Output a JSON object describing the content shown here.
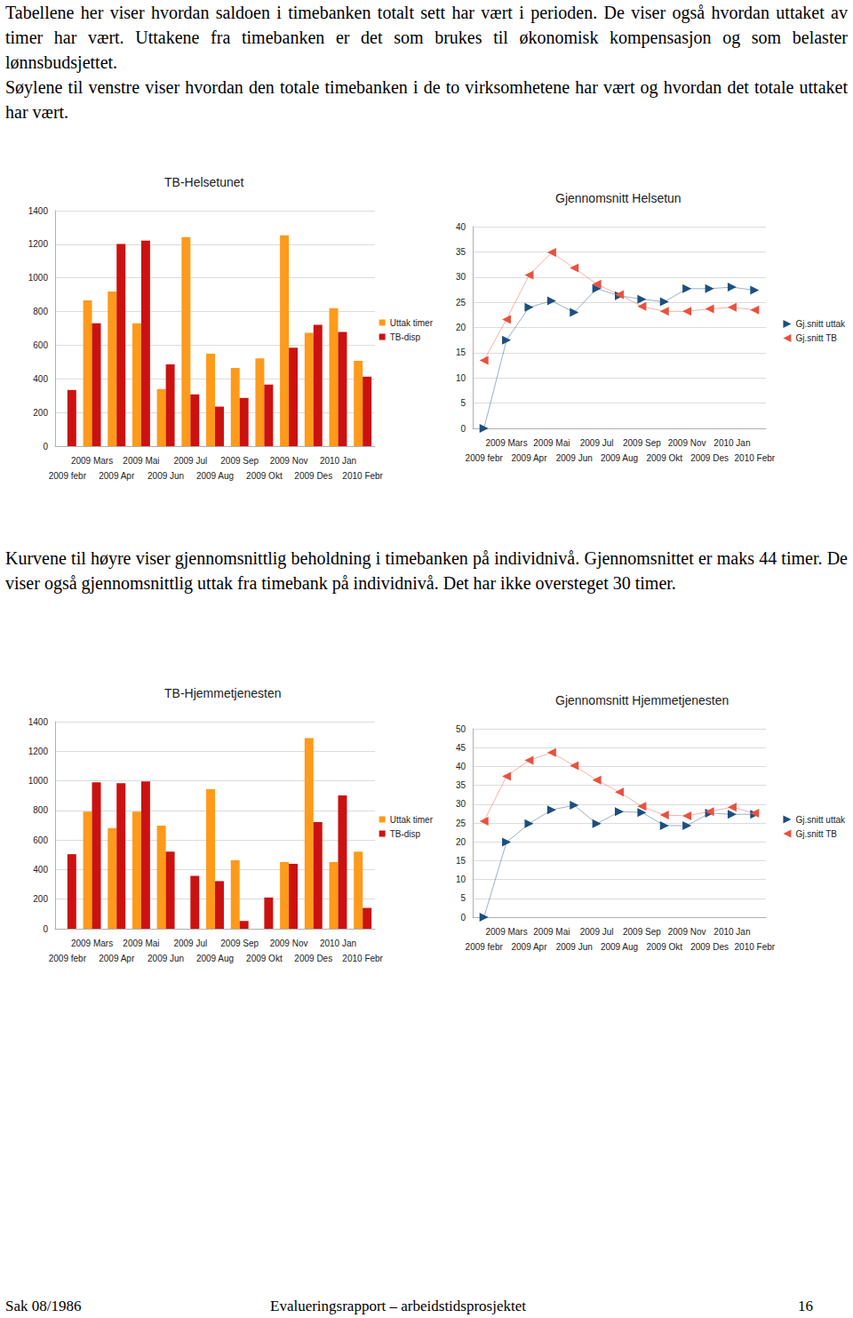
{
  "intro": {
    "paragraphs": [
      "Tabellene her viser hvordan  saldoen i timebanken totalt sett har vært i perioden. De viser også hvordan uttaket av timer har vært. Uttakene fra timebanken er det som brukes til økonomisk kompensasjon og som belaster lønnsbudsjettet.",
      "Søylene til venstre viser hvordan den totale timebanken i de to virksomhetene har vært og hvordan det totale uttaket har vært."
    ]
  },
  "chart_data": [
    {
      "type": "bar",
      "title": "TB-Helsetunet",
      "categories": [
        "2009 febr",
        "2009 Mars",
        "2009 Apr",
        "2009 Mai",
        "2009 Jun",
        "2009 Jul",
        "2009 Aug",
        "2009 Sep",
        "2009 Okt",
        "2009 Nov",
        "2009 Des",
        "2010 Jan",
        "2010 Febr"
      ],
      "series": [
        {
          "name": "Uttak timer",
          "color": "#ff9a1a",
          "values": [
            null,
            867,
            919,
            731,
            340,
            1243,
            549,
            465,
            522,
            1254,
            674,
            820,
            507
          ]
        },
        {
          "name": "TB-disp",
          "color": "#cc1111",
          "values": [
            334,
            731,
            1202,
            1222,
            486,
            308,
            235,
            287,
            366,
            585,
            721,
            679,
            413
          ]
        }
      ],
      "ylim": [
        0,
        1400
      ],
      "yticks": [
        0,
        200,
        400,
        600,
        800,
        1000,
        1200,
        1400
      ],
      "grid": true,
      "legend": "right"
    },
    {
      "type": "line",
      "title": "Gjennomsnitt Helsetun",
      "categories": [
        "2009 febr",
        "2009 Mars",
        "2009 Apr",
        "2009 Mai",
        "2009 Jun",
        "2009 Jul",
        "2009 Aug",
        "2009 Sep",
        "2009 Okt",
        "2009 Nov",
        "2009 Des",
        "2010 Jan",
        "2010 Febr"
      ],
      "series": [
        {
          "name": "Gj.snitt uttak",
          "color": "#1c4f80",
          "marker": "triangle-right",
          "line_style": "solid",
          "values": [
            0,
            17.5,
            24,
            25.3,
            23,
            27.7,
            26.3,
            25.6,
            25.1,
            27.7,
            27.7,
            28,
            27.4
          ]
        },
        {
          "name": "Gj.snitt TB",
          "color": "#e8523f",
          "marker": "triangle-left",
          "line_style": "solid",
          "values": [
            13.5,
            21.6,
            30.4,
            34.9,
            31.8,
            28.6,
            26.5,
            24.2,
            23.2,
            23.2,
            23.7,
            24,
            23.5
          ]
        }
      ],
      "ylim": [
        0,
        40
      ],
      "yticks": [
        0,
        5,
        10,
        15,
        20,
        25,
        30,
        35,
        40
      ],
      "grid": true,
      "legend": "right"
    },
    {
      "type": "bar",
      "title": "TB-Hjemmetjenesten",
      "categories": [
        "2009 febr",
        "2009 Mars",
        "2009 Apr",
        "2009 Mai",
        "2009 Jun",
        "2009 Jul",
        "2009 Aug",
        "2009 Sep",
        "2009 Okt",
        "2009 Nov",
        "2009 Des",
        "2010 Jan",
        "2010 Febr"
      ],
      "series": [
        {
          "name": "Uttak timer",
          "color": "#ff9a1a",
          "values": [
            null,
            791,
            680,
            791,
            697,
            null,
            943,
            463,
            null,
            451,
            1289,
            451,
            521
          ]
        },
        {
          "name": "TB-disp",
          "color": "#cc1111",
          "values": [
            504,
            990,
            984,
            996,
            521,
            357,
            322,
            53,
            211,
            439,
            721,
            902,
            141
          ]
        }
      ],
      "ylim": [
        0,
        1400
      ],
      "yticks": [
        0,
        200,
        400,
        600,
        800,
        1000,
        1200,
        1400
      ],
      "grid": true,
      "legend": "right"
    },
    {
      "type": "line",
      "title": "Gjennomsnitt Hjemmetjenesten",
      "categories": [
        "2009 febr",
        "2009 Mars",
        "2009 Apr",
        "2009 Mai",
        "2009 Jun",
        "2009 Jul",
        "2009 Aug",
        "2009 Sep",
        "2009 Okt",
        "2009 Nov",
        "2009 Des",
        "2010 Jan",
        "2010 Febr"
      ],
      "series": [
        {
          "name": "Gj.snitt uttak",
          "color": "#1c4f80",
          "marker": "triangle-right",
          "line_style": "solid",
          "values": [
            0,
            19.9,
            24.8,
            28.5,
            29.7,
            24.8,
            28,
            27.8,
            24.3,
            24.3,
            27.6,
            27.3,
            27.3
          ]
        },
        {
          "name": "Gj.snitt TB",
          "color": "#e8523f",
          "marker": "triangle-left",
          "line_style": "solid",
          "values": [
            25.5,
            37.4,
            41.6,
            43.7,
            40.2,
            36.4,
            33.2,
            29.4,
            27.1,
            26.9,
            28,
            29.2,
            27.6
          ]
        }
      ],
      "ylim": [
        0,
        50
      ],
      "yticks": [
        0,
        5,
        10,
        15,
        20,
        25,
        30,
        35,
        40,
        45,
        50
      ],
      "grid": true,
      "legend": "right"
    }
  ],
  "middle_text": {
    "paragraphs": [
      "Kurvene til høyre viser gjennomsnittlig beholdning i timebanken på individnivå. Gjennomsnittet er maks 44 timer. De viser også gjennomsnittlig uttak fra timebank på individnivå. Det har ikke oversteget 30 timer."
    ]
  },
  "footer": {
    "left": "Sak 08/1986",
    "center": "Evalueringsrapport – arbeidstidsprosjektet",
    "right": "16"
  }
}
